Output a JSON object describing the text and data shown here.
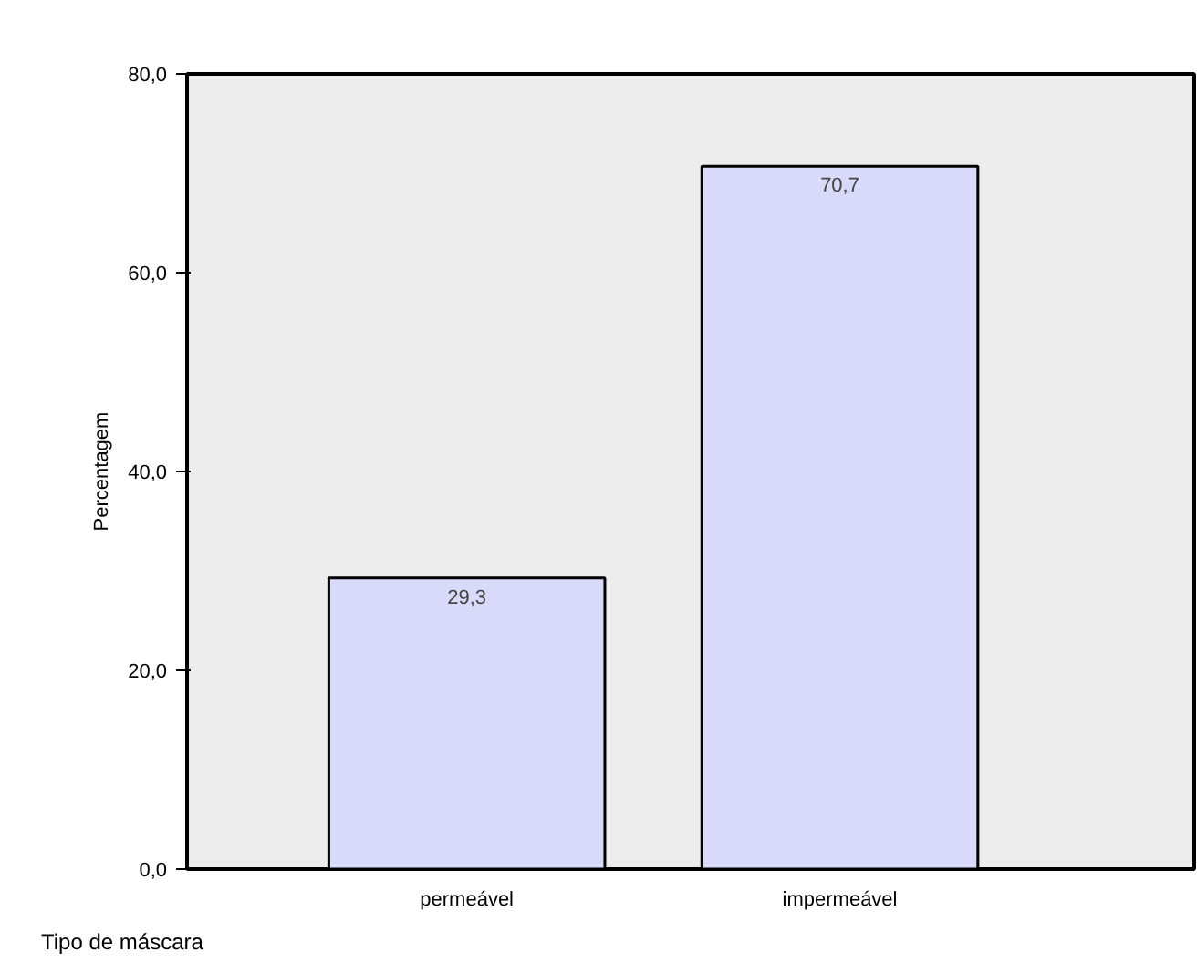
{
  "chart_data": {
    "type": "bar",
    "xlabel": "Tipo de máscara",
    "ylabel": "Percentagem",
    "categories": [
      "permeável",
      "impermeável"
    ],
    "values": [
      29.3,
      70.7
    ],
    "value_labels": [
      "29,3",
      "70,7"
    ],
    "color": "#d9dafa",
    "ylim": [
      0,
      80
    ],
    "yticks": [
      {
        "value": 0,
        "label": "0,0"
      },
      {
        "value": 20,
        "label": "20,0"
      },
      {
        "value": 40,
        "label": "40,0"
      },
      {
        "value": 60,
        "label": "60,0"
      },
      {
        "value": 80,
        "label": "80,0"
      }
    ],
    "grid": false
  }
}
